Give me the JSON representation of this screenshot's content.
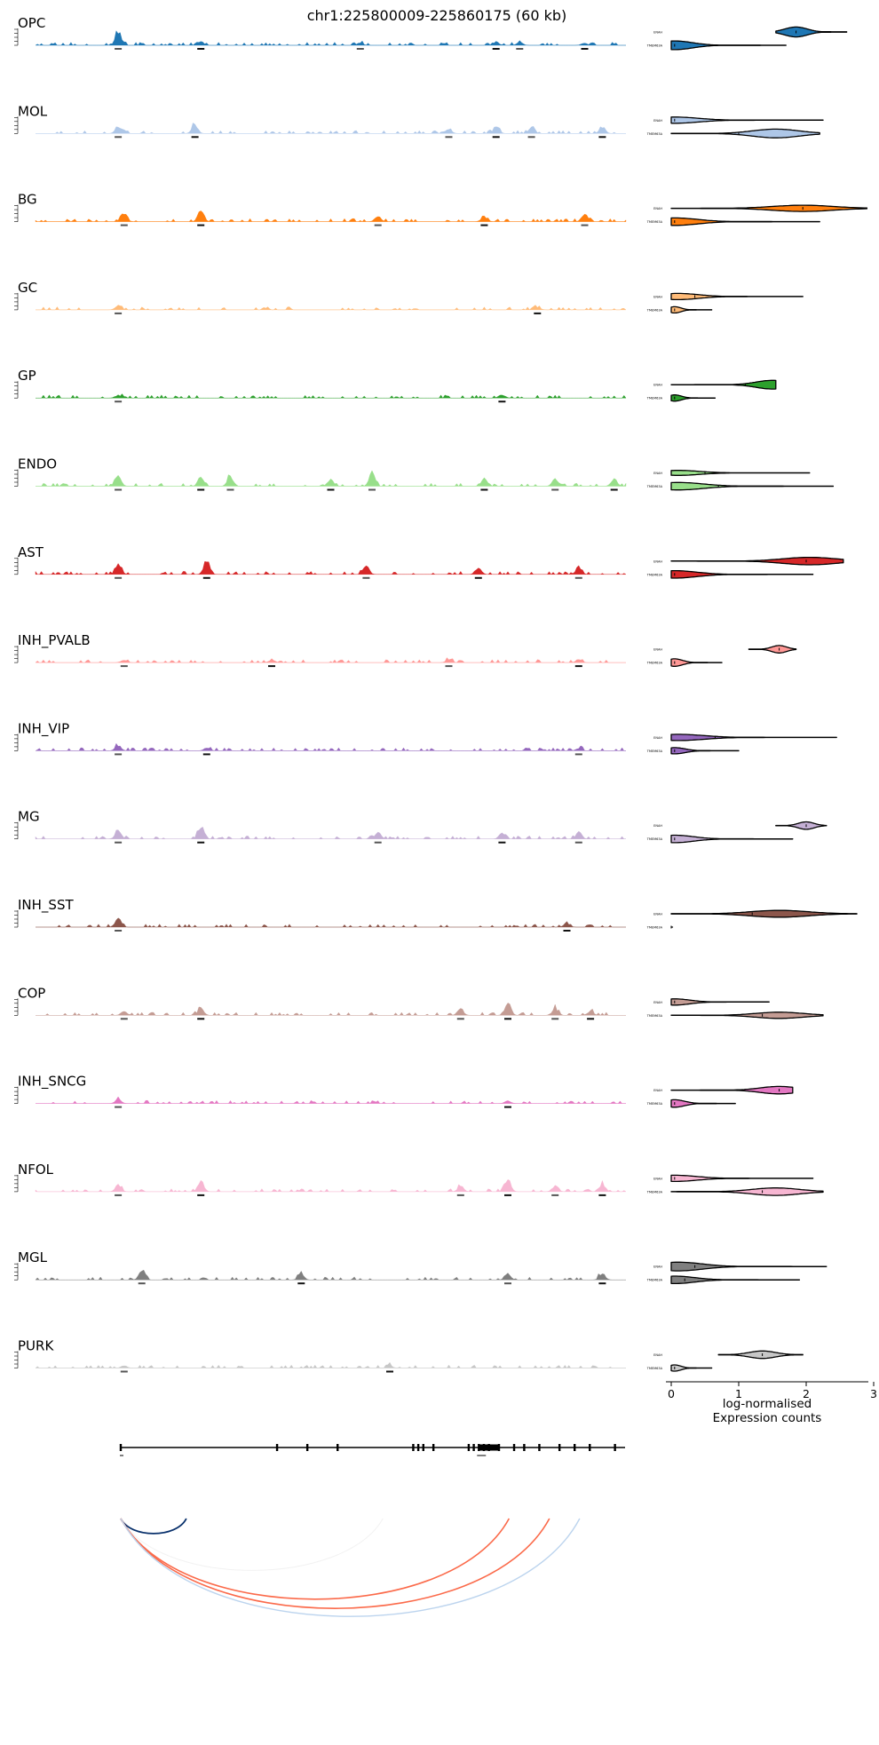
{
  "chart_data": {
    "type": "genome_browser_tracks_with_violins",
    "title": "chr1:225800009-225860175 (60 kb)",
    "region": {
      "chrom": "chr1",
      "start": 225800009,
      "end": 225860175,
      "size_label": "60 kb"
    },
    "tracks": [
      {
        "name": "OPC",
        "color": "#1f77b4",
        "peaks": [
          [
            0.14,
            0.9
          ],
          [
            0.28,
            0.25
          ],
          [
            0.55,
            0.15
          ],
          [
            0.78,
            0.25
          ],
          [
            0.82,
            0.2
          ],
          [
            0.93,
            0.15
          ]
        ]
      },
      {
        "name": "MOL",
        "color": "#aec7e8",
        "peaks": [
          [
            0.14,
            0.5
          ],
          [
            0.27,
            0.6
          ],
          [
            0.7,
            0.3
          ],
          [
            0.78,
            0.45
          ],
          [
            0.84,
            0.35
          ],
          [
            0.96,
            0.45
          ]
        ]
      },
      {
        "name": "BG",
        "color": "#ff7f0e",
        "peaks": [
          [
            0.15,
            0.6
          ],
          [
            0.28,
            0.85
          ],
          [
            0.58,
            0.4
          ],
          [
            0.76,
            0.35
          ],
          [
            0.93,
            0.5
          ]
        ]
      },
      {
        "name": "GC",
        "color": "#ffbb78",
        "peaks": [
          [
            0.14,
            0.3
          ],
          [
            0.85,
            0.2
          ]
        ]
      },
      {
        "name": "GP",
        "color": "#2ca02c",
        "peaks": [
          [
            0.14,
            0.2
          ],
          [
            0.79,
            0.25
          ]
        ]
      },
      {
        "name": "ENDO",
        "color": "#98df8a",
        "peaks": [
          [
            0.14,
            0.8
          ],
          [
            0.28,
            0.6
          ],
          [
            0.33,
            0.7
          ],
          [
            0.5,
            0.5
          ],
          [
            0.57,
            0.9
          ],
          [
            0.76,
            0.5
          ],
          [
            0.88,
            0.5
          ],
          [
            0.98,
            0.5
          ]
        ]
      },
      {
        "name": "AST",
        "color": "#d62728",
        "peaks": [
          [
            0.14,
            0.7
          ],
          [
            0.29,
            1.0
          ],
          [
            0.56,
            0.6
          ],
          [
            0.75,
            0.5
          ],
          [
            0.92,
            0.5
          ]
        ]
      },
      {
        "name": "INH_PVALB",
        "color": "#ff9896",
        "peaks": [
          [
            0.15,
            0.2
          ],
          [
            0.4,
            0.2
          ],
          [
            0.7,
            0.2
          ],
          [
            0.92,
            0.2
          ]
        ]
      },
      {
        "name": "INH_VIP",
        "color": "#9467bd",
        "peaks": [
          [
            0.14,
            0.35
          ],
          [
            0.29,
            0.2
          ],
          [
            0.92,
            0.15
          ]
        ]
      },
      {
        "name": "MG",
        "color": "#c5b0d5",
        "peaks": [
          [
            0.14,
            0.6
          ],
          [
            0.28,
            0.9
          ],
          [
            0.58,
            0.4
          ],
          [
            0.79,
            0.35
          ],
          [
            0.92,
            0.45
          ]
        ]
      },
      {
        "name": "INH_SST",
        "color": "#8c564b",
        "peaks": [
          [
            0.14,
            0.7
          ],
          [
            0.9,
            0.25
          ]
        ]
      },
      {
        "name": "COP",
        "color": "#c49c94",
        "peaks": [
          [
            0.15,
            0.3
          ],
          [
            0.28,
            0.5
          ],
          [
            0.72,
            0.45
          ],
          [
            0.8,
            0.9
          ],
          [
            0.88,
            0.5
          ],
          [
            0.94,
            0.3
          ]
        ]
      },
      {
        "name": "INH_SNCG",
        "color": "#e377c2",
        "peaks": [
          [
            0.14,
            0.3
          ],
          [
            0.8,
            0.2
          ]
        ]
      },
      {
        "name": "NFOL",
        "color": "#f7b6d2",
        "peaks": [
          [
            0.14,
            0.5
          ],
          [
            0.28,
            0.7
          ],
          [
            0.72,
            0.4
          ],
          [
            0.8,
            0.8
          ],
          [
            0.88,
            0.4
          ],
          [
            0.96,
            0.5
          ]
        ]
      },
      {
        "name": "MGL",
        "color": "#7f7f7f",
        "peaks": [
          [
            0.18,
            0.7
          ],
          [
            0.45,
            0.4
          ],
          [
            0.8,
            0.4
          ],
          [
            0.96,
            0.45
          ]
        ]
      },
      {
        "name": "PURK",
        "color": "#c7c7c7",
        "peaks": [
          [
            0.15,
            0.15
          ],
          [
            0.6,
            0.15
          ]
        ]
      }
    ],
    "violins": [
      {
        "name": "OPC",
        "v1": {
          "min": 1.55,
          "max": 2.6,
          "peak": 1.85,
          "width": 0.8,
          "median": 1.85
        },
        "v2": {
          "min": 0.0,
          "max": 1.7,
          "peak": 0.05,
          "width": 0.7,
          "median": 0.05
        }
      },
      {
        "name": "MOL",
        "v1": {
          "min": 0.0,
          "max": 2.25,
          "peak": 0.05,
          "width": 0.5,
          "median": 0.05
        },
        "v2": {
          "min": 0.0,
          "max": 2.2,
          "peak": 1.55,
          "width": 0.7,
          "median": 1.0
        }
      },
      {
        "name": "BG",
        "v1": {
          "min": 0.0,
          "max": 2.9,
          "peak": 1.95,
          "width": 0.5,
          "median": 1.95
        },
        "v2": {
          "min": 0.0,
          "max": 2.2,
          "peak": 0.05,
          "width": 0.6,
          "median": 0.05
        }
      },
      {
        "name": "GC",
        "v1": {
          "min": 0.0,
          "max": 1.95,
          "peak": 0.1,
          "width": 0.5,
          "median": 0.35
        },
        "v2": {
          "min": 0.0,
          "max": 0.6,
          "peak": 0.05,
          "width": 0.5,
          "median": 0.05
        }
      },
      {
        "name": "GP",
        "v1": {
          "min": 0.0,
          "max": 1.55,
          "peak": 1.5,
          "width": 0.7,
          "median": 1.1
        },
        "v2": {
          "min": 0.0,
          "max": 0.65,
          "peak": 0.05,
          "width": 0.5,
          "median": 0.05
        }
      },
      {
        "name": "ENDO",
        "v1": {
          "min": 0.0,
          "max": 2.05,
          "peak": 0.1,
          "width": 0.4,
          "median": 0.5
        },
        "v2": {
          "min": 0.0,
          "max": 2.4,
          "peak": 0.1,
          "width": 0.6,
          "median": 0.7
        }
      },
      {
        "name": "AST",
        "v1": {
          "min": 0.0,
          "max": 2.55,
          "peak": 2.05,
          "width": 0.6,
          "median": 2.0
        },
        "v2": {
          "min": 0.0,
          "max": 2.1,
          "peak": 0.05,
          "width": 0.6,
          "median": 0.05
        }
      },
      {
        "name": "INH_PVALB",
        "v1": {
          "min": 1.15,
          "max": 1.85,
          "peak": 1.6,
          "width": 0.6,
          "median": 1.6
        },
        "v2": {
          "min": 0.0,
          "max": 0.75,
          "peak": 0.05,
          "width": 0.6,
          "median": 0.05
        }
      },
      {
        "name": "INH_VIP",
        "v1": {
          "min": 0.0,
          "max": 2.45,
          "peak": 0.1,
          "width": 0.5,
          "median": 0.65
        },
        "v2": {
          "min": 0.0,
          "max": 1.0,
          "peak": 0.05,
          "width": 0.5,
          "median": 0.05
        }
      },
      {
        "name": "MG",
        "v1": {
          "min": 1.55,
          "max": 2.3,
          "peak": 2.0,
          "width": 0.6,
          "median": 2.0
        },
        "v2": {
          "min": 0.0,
          "max": 1.8,
          "peak": 0.05,
          "width": 0.6,
          "median": 0.05
        }
      },
      {
        "name": "INH_SST",
        "v1": {
          "min": 0.0,
          "max": 2.75,
          "peak": 1.6,
          "width": 0.55,
          "median": 1.2
        },
        "v2": {
          "min": 0.0,
          "max": 0.02,
          "peak": 0.0,
          "width": 0.0,
          "median": 0.0
        }
      },
      {
        "name": "COP",
        "v1": {
          "min": 0.0,
          "max": 1.45,
          "peak": 0.05,
          "width": 0.5,
          "median": 0.05
        },
        "v2": {
          "min": 0.0,
          "max": 2.25,
          "peak": 1.6,
          "width": 0.5,
          "median": 1.35
        }
      },
      {
        "name": "INH_SNCG",
        "v1": {
          "min": 0.0,
          "max": 1.8,
          "peak": 1.6,
          "width": 0.6,
          "median": 1.6
        },
        "v2": {
          "min": 0.0,
          "max": 0.95,
          "peak": 0.05,
          "width": 0.6,
          "median": 0.05
        }
      },
      {
        "name": "NFOL",
        "v1": {
          "min": 0.0,
          "max": 2.1,
          "peak": 0.05,
          "width": 0.5,
          "median": 0.05
        },
        "v2": {
          "min": 0.0,
          "max": 2.25,
          "peak": 1.55,
          "width": 0.6,
          "median": 1.35
        }
      },
      {
        "name": "MGL",
        "v1": {
          "min": 0.0,
          "max": 2.3,
          "peak": 0.1,
          "width": 0.7,
          "median": 0.35
        },
        "v2": {
          "min": 0.0,
          "max": 1.9,
          "peak": 0.05,
          "width": 0.6,
          "median": 0.2
        }
      },
      {
        "name": "PURK",
        "v1": {
          "min": 0.7,
          "max": 1.95,
          "peak": 1.35,
          "width": 0.6,
          "median": 1.35
        },
        "v2": {
          "min": 0.0,
          "max": 0.6,
          "peak": 0.05,
          "width": 0.5,
          "median": 0.05
        }
      }
    ],
    "violin_axis": {
      "xlim": [
        0,
        3
      ],
      "ticks": [
        0,
        1,
        2,
        3
      ],
      "xlabel_line1": "log-normalised",
      "xlabel_line2": "Expression counts"
    },
    "gene_labels": [
      "ENAH",
      "TMEM63A"
    ],
    "gene_structure": {
      "span": [
        0.0,
        1.0
      ],
      "exons": [
        0.0,
        0.31,
        0.37,
        0.43,
        0.58,
        0.59,
        0.6,
        0.62,
        0.69,
        0.7,
        0.71,
        0.72,
        0.73,
        0.75,
        0.78,
        0.8,
        0.83,
        0.87,
        0.9,
        0.93,
        0.98
      ]
    },
    "loops": [
      {
        "start": 0.0,
        "end": 0.13,
        "color": "#08306b",
        "depth": 0.13,
        "width": 1.8
      },
      {
        "start": 0.0,
        "end": 0.77,
        "color": "#fb6a4a",
        "depth": 0.7,
        "width": 1.6
      },
      {
        "start": 0.0,
        "end": 0.85,
        "color": "#fb6a4a",
        "depth": 0.78,
        "width": 1.6
      },
      {
        "start": 0.0,
        "end": 0.91,
        "color": "#bcd4ee",
        "depth": 0.85,
        "width": 1.4
      },
      {
        "start": 0.0,
        "end": 0.52,
        "color": "#f2f2f2",
        "depth": 0.45,
        "width": 1.0
      }
    ]
  }
}
